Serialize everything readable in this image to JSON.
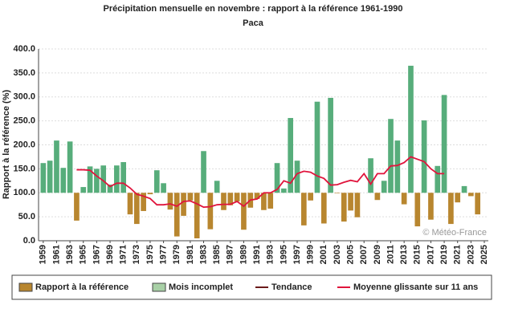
{
  "chart_data": {
    "type": "bar",
    "title": "Précipitation mensuelle en novembre : rapport à la référence 1961-1990",
    "subtitle": "Paca",
    "ylabel": "Rapport à la référence (%)",
    "watermark": "© Météo-France",
    "x": [
      1959,
      1960,
      1961,
      1962,
      1963,
      1964,
      1965,
      1966,
      1967,
      1968,
      1969,
      1970,
      1971,
      1972,
      1973,
      1974,
      1975,
      1976,
      1977,
      1978,
      1979,
      1980,
      1981,
      1982,
      1983,
      1984,
      1985,
      1986,
      1987,
      1988,
      1989,
      1990,
      1991,
      1992,
      1993,
      1994,
      1995,
      1996,
      1997,
      1998,
      1999,
      2000,
      2001,
      2002,
      2003,
      2004,
      2005,
      2006,
      2007,
      2008,
      2009,
      2010,
      2011,
      2012,
      2013,
      2014,
      2015,
      2016,
      2017,
      2018,
      2019,
      2020,
      2021,
      2022,
      2023,
      2024,
      2025
    ],
    "baseline": 100,
    "bars": {
      "color_above": "#57ad7b",
      "color_below": "#b8862f",
      "values": [
        162,
        167,
        209,
        152,
        207,
        42,
        112,
        155,
        150,
        157,
        117,
        157,
        164,
        55,
        35,
        62,
        97,
        147,
        120,
        65,
        9,
        52,
        84,
        5,
        187,
        24,
        125,
        64,
        74,
        82,
        23,
        69,
        87,
        64,
        67,
        162,
        109,
        256,
        167,
        32,
        84,
        290,
        36,
        298,
        99,
        40,
        63,
        49,
        100,
        172,
        85,
        125,
        254,
        209,
        76,
        365,
        30,
        251,
        44,
        156,
        304,
        35,
        80,
        114,
        93,
        55,
        null
      ]
    },
    "moving_average": {
      "color": "#e0143c",
      "values": [
        null,
        null,
        null,
        null,
        null,
        148,
        148,
        147,
        135,
        125,
        113,
        120,
        120,
        110,
        97,
        93,
        88,
        75,
        75,
        77,
        72,
        82,
        83,
        77,
        70,
        71,
        75,
        76,
        76,
        82,
        72,
        85,
        87,
        100,
        100,
        107,
        125,
        120,
        140,
        145,
        143,
        135,
        130,
        116,
        117,
        122,
        126,
        123,
        140,
        118,
        140,
        140,
        156,
        157,
        163,
        175,
        170,
        165,
        150,
        140,
        140,
        null,
        null,
        null,
        null,
        null,
        null
      ]
    },
    "legend": [
      {
        "name": "Rapport à la référence",
        "color": "#b8862f",
        "kind": "box"
      },
      {
        "name": "Mois incomplet",
        "color": "#a8d0a6",
        "kind": "box"
      },
      {
        "name": "Tendance",
        "color": "#6b1a1a",
        "kind": "line"
      },
      {
        "name": "Moyenne glissante sur 11 ans",
        "color": "#e0143c",
        "kind": "line"
      }
    ],
    "xlim": [
      1958.3,
      2025.6
    ],
    "xticks": [
      1959,
      1961,
      1963,
      1965,
      1967,
      1969,
      1971,
      1973,
      1975,
      1977,
      1979,
      1981,
      1983,
      1985,
      1987,
      1989,
      1991,
      1993,
      1995,
      1997,
      1999,
      2001,
      2003,
      2005,
      2007,
      2009,
      2011,
      2013,
      2015,
      2017,
      2019,
      2021,
      2023,
      2025
    ],
    "ylim": [
      0,
      400
    ],
    "yticks": [
      {
        "value": 0,
        "label": "0.0"
      },
      {
        "value": 50,
        "label": "50.0"
      },
      {
        "value": 100,
        "label": "100.0"
      },
      {
        "value": 150,
        "label": "150.0"
      },
      {
        "value": 200,
        "label": "200.0"
      },
      {
        "value": 250,
        "label": "250.0"
      },
      {
        "value": 300,
        "label": "300.0"
      },
      {
        "value": 350,
        "label": "350.0"
      },
      {
        "value": 400,
        "label": "400.0"
      }
    ],
    "grid": true
  }
}
